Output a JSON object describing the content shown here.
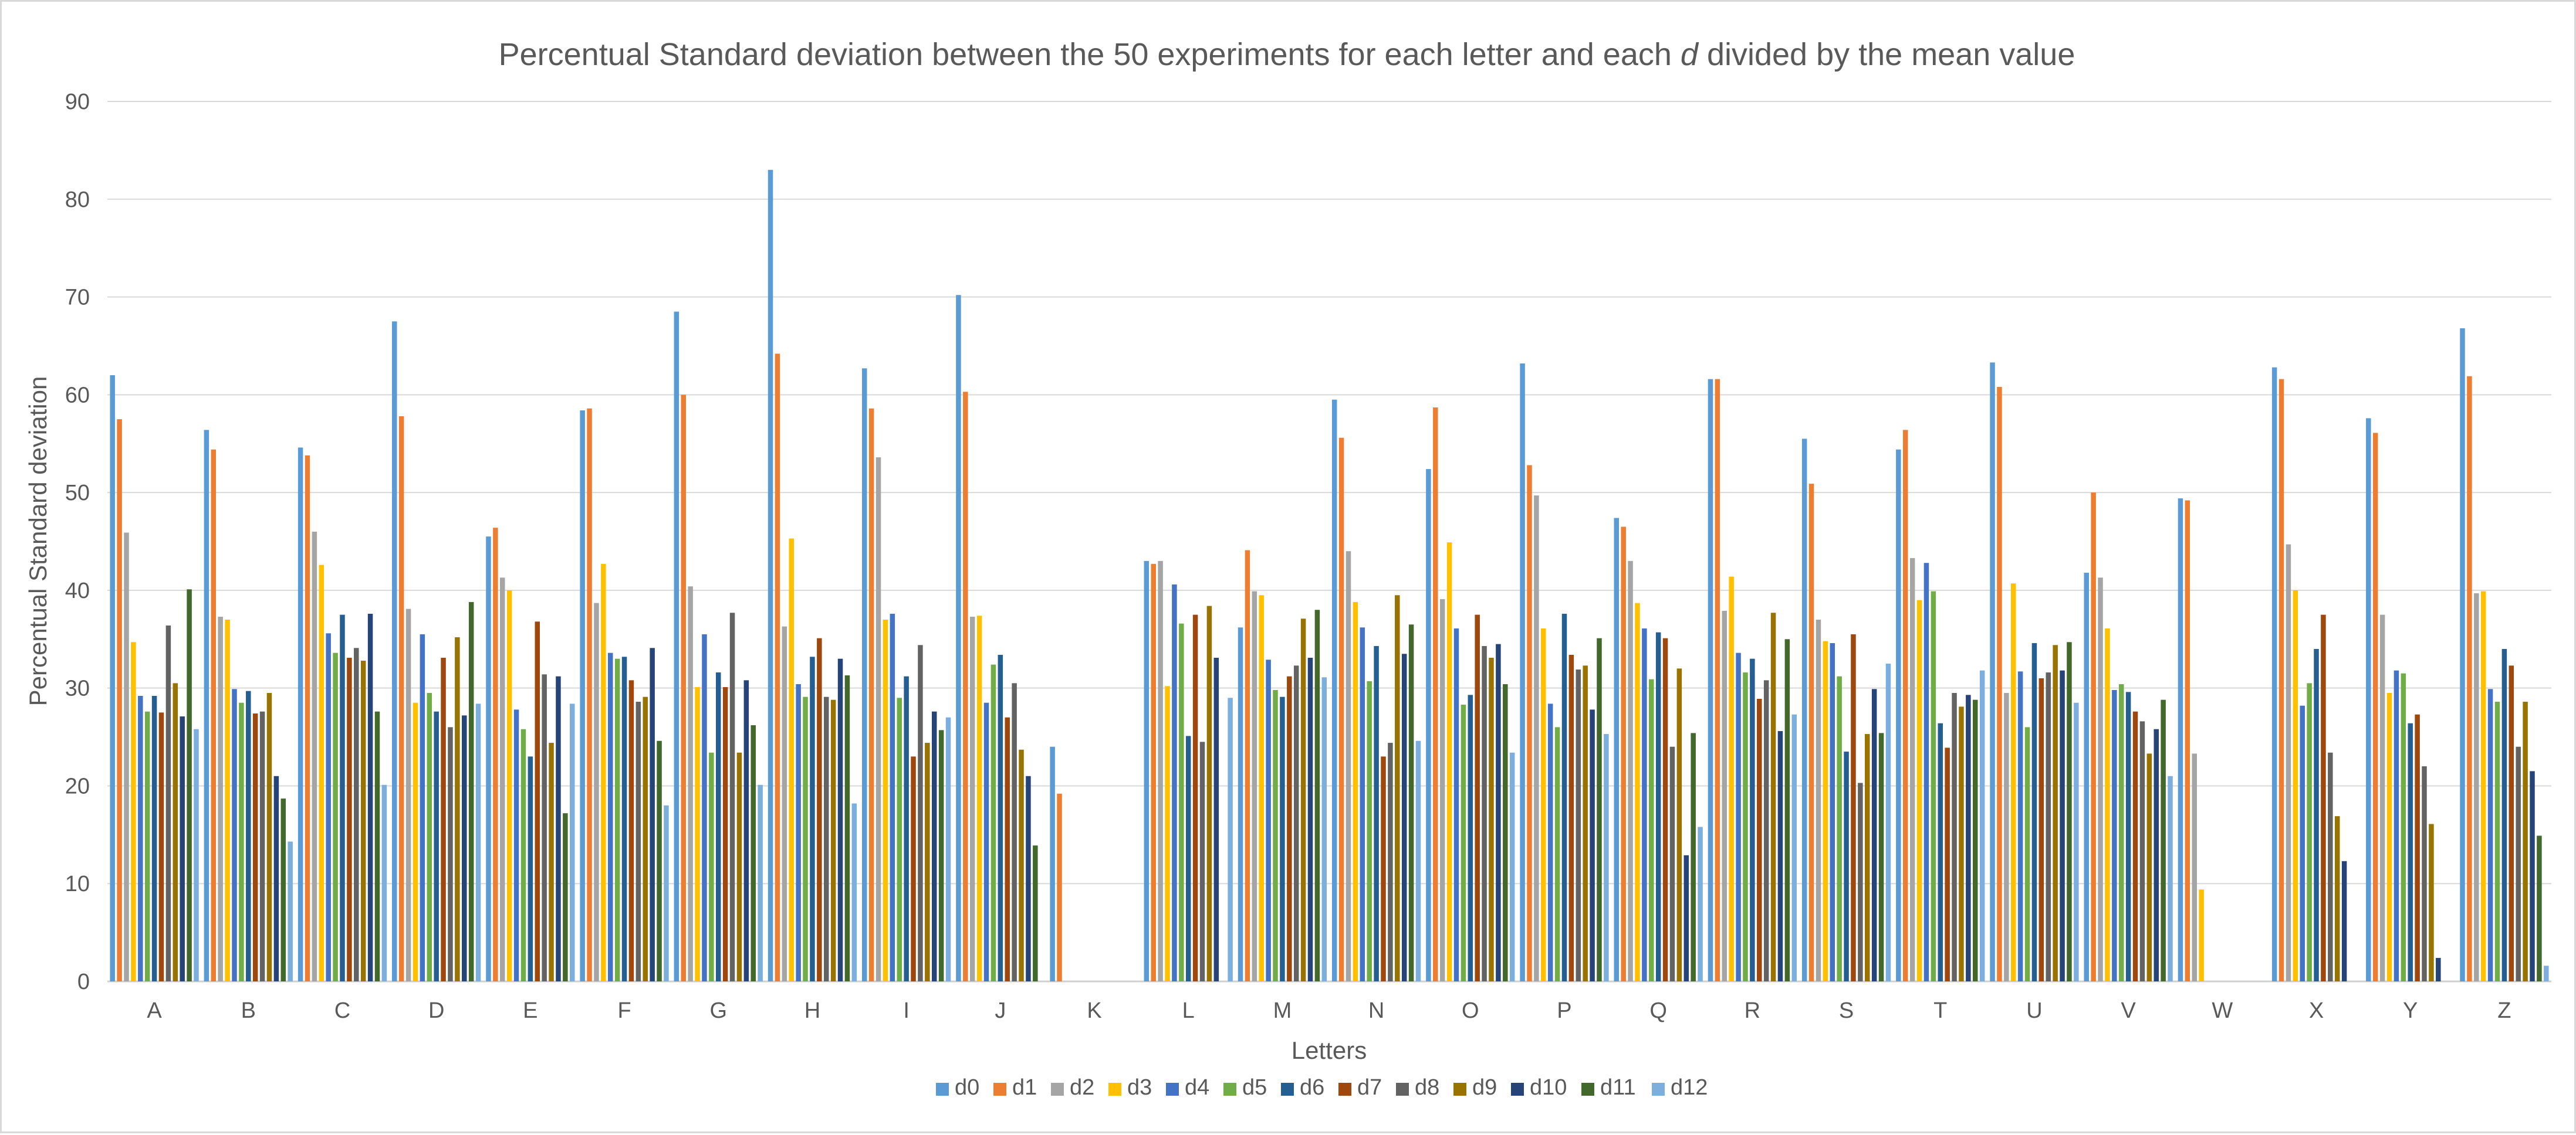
{
  "chart_data": {
    "type": "bar",
    "title_pre": "Percentual Standard deviation between the 50 experiments for each letter and each ",
    "title_var": "d",
    "title_post": " divided by the mean value",
    "xlabel": "Letters",
    "ylabel": "Percentual Standard deviation",
    "ylim": [
      0,
      90
    ],
    "yticks": [
      0,
      10,
      20,
      30,
      40,
      50,
      60,
      70,
      80,
      90
    ],
    "grid": true,
    "legend_position": "bottom",
    "categories": [
      "A",
      "B",
      "C",
      "D",
      "E",
      "F",
      "G",
      "H",
      "I",
      "J",
      "K",
      "L",
      "M",
      "N",
      "O",
      "P",
      "Q",
      "R",
      "S",
      "T",
      "U",
      "V",
      "W",
      "X",
      "Y",
      "Z"
    ],
    "series": [
      {
        "name": "d0",
        "color": "#5B9BD5",
        "values": [
          62,
          56.4,
          54.6,
          67.5,
          45.5,
          58.4,
          68.5,
          83,
          62.7,
          70.2,
          24,
          43,
          36.2,
          59.5,
          52.4,
          63.2,
          47.4,
          61.6,
          55.5,
          54.4,
          63.3,
          41.8,
          49.4,
          62.8,
          57.6,
          66.8
        ]
      },
      {
        "name": "d1",
        "color": "#ED7D31",
        "values": [
          57.5,
          54.4,
          53.8,
          57.8,
          46.4,
          58.6,
          60,
          64.2,
          58.6,
          60.3,
          19.2,
          42.7,
          44.1,
          55.6,
          58.7,
          52.8,
          46.5,
          61.6,
          50.9,
          56.4,
          60.8,
          50,
          49.2,
          61.6,
          56.1,
          61.9
        ]
      },
      {
        "name": "d2",
        "color": "#A5A5A5",
        "values": [
          45.9,
          37.3,
          46,
          38.1,
          41.3,
          38.7,
          40.4,
          36.3,
          53.6,
          37.3,
          0,
          43,
          39.9,
          44,
          39.1,
          49.7,
          43,
          37.9,
          37,
          43.3,
          29.5,
          41.3,
          23.3,
          44.7,
          37.5,
          39.7
        ]
      },
      {
        "name": "d3",
        "color": "#FFC000",
        "values": [
          34.7,
          37,
          42.6,
          28.5,
          40,
          42.7,
          30.1,
          45.3,
          37,
          37.4,
          0,
          30.2,
          39.5,
          38.8,
          44.9,
          36.1,
          38.7,
          41.4,
          34.8,
          39,
          40.7,
          36.1,
          9.4,
          40,
          29.5,
          39.9
        ]
      },
      {
        "name": "d4",
        "color": "#4472C4",
        "values": [
          29.2,
          29.9,
          35.6,
          35.5,
          27.8,
          33.6,
          35.5,
          30.4,
          37.6,
          28.5,
          0,
          40.6,
          32.9,
          36.2,
          36.1,
          28.4,
          36.1,
          33.6,
          34.6,
          42.8,
          31.7,
          29.8,
          0,
          28.2,
          31.8,
          29.9
        ]
      },
      {
        "name": "d5",
        "color": "#70AD47",
        "values": [
          27.6,
          28.5,
          33.6,
          29.5,
          25.8,
          33,
          23.4,
          29.1,
          29,
          32.4,
          0,
          36.6,
          29.8,
          30.7,
          28.3,
          26,
          30.9,
          31.6,
          31.2,
          39.9,
          26,
          30.4,
          0,
          30.5,
          31.5,
          28.6
        ]
      },
      {
        "name": "d6",
        "color": "#255E91",
        "values": [
          29.2,
          29.7,
          37.5,
          27.6,
          23,
          33.2,
          31.6,
          33.2,
          31.2,
          33.4,
          0,
          25.1,
          29.1,
          34.3,
          29.3,
          37.6,
          35.7,
          33,
          23.5,
          26.4,
          34.6,
          29.6,
          0,
          34,
          26.4,
          34
        ]
      },
      {
        "name": "d7",
        "color": "#9E480E",
        "values": [
          27.5,
          27.4,
          33.1,
          33.1,
          36.8,
          30.8,
          30.1,
          35.1,
          23,
          27,
          0,
          37.5,
          31.2,
          23,
          37.5,
          33.4,
          35.1,
          28.9,
          35.5,
          23.9,
          31,
          27.6,
          0,
          37.5,
          27.3,
          32.3
        ]
      },
      {
        "name": "d8",
        "color": "#636363",
        "values": [
          36.4,
          27.6,
          34.1,
          26,
          31.4,
          28.6,
          37.7,
          29.1,
          34.4,
          30.5,
          0,
          24.5,
          32.3,
          24.4,
          34.3,
          31.9,
          24,
          30.8,
          20.3,
          29.5,
          31.6,
          26.6,
          0,
          23.4,
          22,
          24
        ]
      },
      {
        "name": "d9",
        "color": "#997300",
        "values": [
          30.5,
          29.5,
          32.8,
          35.2,
          24.4,
          29.1,
          23.4,
          28.8,
          24.4,
          23.7,
          0,
          38.4,
          37.1,
          39.5,
          33.1,
          32.3,
          32,
          37.7,
          25.3,
          28.1,
          34.4,
          23.3,
          0,
          16.9,
          16.1,
          28.6
        ]
      },
      {
        "name": "d10",
        "color": "#264478",
        "values": [
          27.1,
          21,
          37.6,
          27.2,
          31.2,
          34.1,
          30.8,
          33,
          27.6,
          21,
          0,
          33.1,
          33.1,
          33.5,
          34.5,
          27.8,
          12.9,
          25.6,
          29.9,
          29.3,
          31.8,
          25.8,
          0,
          12.3,
          2.4,
          21.5
        ]
      },
      {
        "name": "d11",
        "color": "#43682B",
        "values": [
          40.1,
          18.7,
          27.6,
          38.8,
          17.2,
          24.6,
          26.2,
          31.3,
          25.7,
          13.9,
          0,
          0,
          38,
          36.5,
          30.4,
          35.1,
          25.4,
          35,
          25.4,
          28.8,
          34.7,
          28.8,
          0,
          0,
          0,
          14.9
        ]
      },
      {
        "name": "d12",
        "color": "#7CAFDD",
        "values": [
          25.8,
          14.3,
          20.1,
          28.4,
          28.4,
          18,
          20.1,
          18.2,
          27,
          0,
          0,
          29,
          31.1,
          24.6,
          23.4,
          25.3,
          15.8,
          27.3,
          32.5,
          31.8,
          28.5,
          21,
          0,
          0,
          0,
          1.6
        ]
      }
    ]
  }
}
